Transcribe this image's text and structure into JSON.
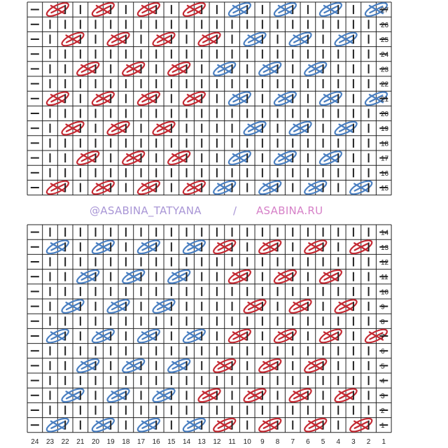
{
  "watermark": {
    "left": "@ASABINA_TATYANA",
    "separator": "/",
    "right": "ASABINA.RU"
  },
  "colors": {
    "red": "#c42a33",
    "blue": "#4a7fc1",
    "grid": "#222222",
    "text": "#222222"
  },
  "legend": {
    "P": "purl (dash)",
    "K": "knit (vertical bar)",
    "R": "crossed stitch, red",
    "B": "crossed stitch, blue"
  },
  "chart_data": {
    "type": "table",
    "column_labels": [
      "24",
      "23",
      "22",
      "21",
      "20",
      "19",
      "18",
      "17",
      "16",
      "15",
      "14",
      "13",
      "12",
      "11",
      "10",
      "9",
      "8",
      "7",
      "6",
      "5",
      "4",
      "3",
      "2",
      "1"
    ],
    "upper_chart": [
      {
        "row": "27",
        "cells": "PRKKRKKRKKRKKBKKBKKBKKBP"
      },
      {
        "row": "26",
        "cells": "PKKKKKKKKKKKKKKKKKKKKKKP"
      },
      {
        "row": "25",
        "cells": "PKRKKRKKRKKRKKBKKBKKBKKP"
      },
      {
        "row": "24",
        "cells": "PKKKKKKKKKKKKKKKKKKKKKKP"
      },
      {
        "row": "23",
        "cells": "PKKRKKRKKRKKBKKBKKBKKKKP"
      },
      {
        "row": "22",
        "cells": "PKKKKKKKKKKKKKKKKKKKKKKP"
      },
      {
        "row": "21",
        "cells": "PRKKRKKRKKRKKBKKBKKBKKBP"
      },
      {
        "row": "20",
        "cells": "PKKKKKKKKKKKKKKKKKKKKKKP"
      },
      {
        "row": "19",
        "cells": "PKRKKRKKRKKKKKBKKBKKBKKP"
      },
      {
        "row": "18",
        "cells": "PKKKKKKKKKKKKKKKKKKKKKKP"
      },
      {
        "row": "17",
        "cells": "PKKRKKRKKRKKKBKKBKKBKKKP"
      },
      {
        "row": "16",
        "cells": "PKKKKKKKKKKKKKKKKKKKKKKP"
      },
      {
        "row": "15",
        "cells": "PRKKRKKRKKRKBKKBKKBKKBKP"
      }
    ],
    "lower_chart": [
      {
        "row": "14",
        "cells": "PKKKKKKKKKKKKKKKKKKKKKKP"
      },
      {
        "row": "13",
        "cells": "PBKKBKKBKKBKRKKRKKRKKRKP"
      },
      {
        "row": "12",
        "cells": "PKKKKKKKKKKKKKKKKKKKKKKP"
      },
      {
        "row": "11",
        "cells": "PKKBKKBKKBKKKRKKRKKRKKKP"
      },
      {
        "row": "10",
        "cells": "PKKKKKKKKKKKKKKKKKKKKKKP"
      },
      {
        "row": "9",
        "cells": "PKBKKBKKBKKKKKRKKRKKRKKP"
      },
      {
        "row": "8",
        "cells": "PKKKKKKKKKKKKKKKKKKKKKKP"
      },
      {
        "row": "7",
        "cells": "PBKKBKKBKKBKKRKKRKKRKKRP"
      },
      {
        "row": "6",
        "cells": "PKKKKKKKKKKKKKKKKKKKKKKP"
      },
      {
        "row": "5",
        "cells": "PKKBKKBKKBKKRKKRKKRKKKKP"
      },
      {
        "row": "4",
        "cells": "PKKKKKKKKKKKKKKKKKKKKKKP"
      },
      {
        "row": "3",
        "cells": "PKBKKBKKBKKRKKRKKRKKRKKP"
      },
      {
        "row": "2",
        "cells": "PKKKKKKKKKKKKKKKKKKKKKKP"
      },
      {
        "row": "1",
        "cells": "PBKKBKKBKKBKRKKRKKRKKRKP"
      }
    ]
  }
}
